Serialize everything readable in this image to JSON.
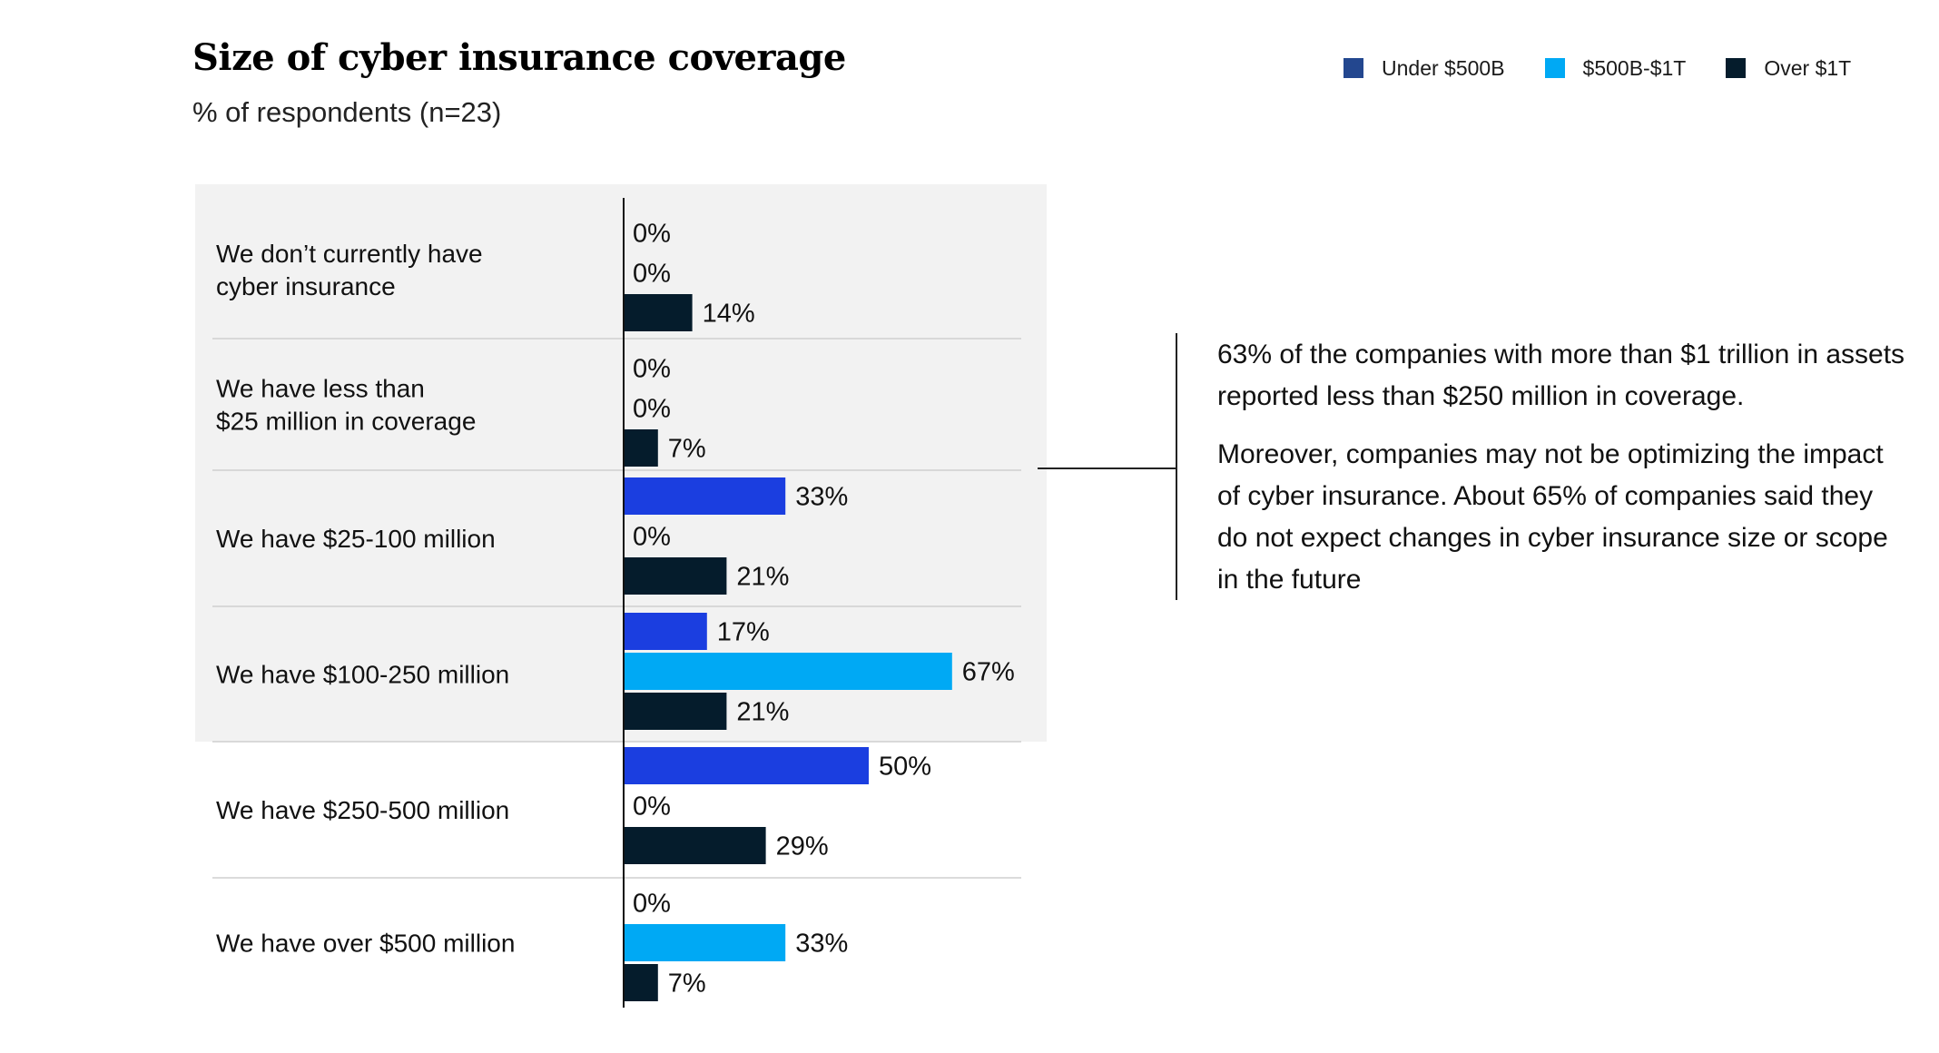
{
  "chart_data": {
    "type": "bar",
    "orientation": "horizontal",
    "title": "Size of cyber insurance coverage",
    "subtitle": "% of respondents (n=23)",
    "legend_position": "top-right",
    "categories": [
      "We don’t currently have cyber insurance",
      "We have less than $25 million in coverage",
      "We have $25-100 million",
      "We have $100-250 million",
      "We have $250-500 million",
      "We have over $500 million"
    ],
    "category_lines": [
      [
        "We don’t currently have",
        "cyber insurance"
      ],
      [
        "We have less than",
        "$25 million in coverage"
      ],
      [
        "We have $25-100 million"
      ],
      [
        "We have $100-250 million"
      ],
      [
        "We have $250-500 million"
      ],
      [
        "We have over $500 million"
      ]
    ],
    "series": [
      {
        "name": "Under $500B",
        "color": "#1b3ee0",
        "legend_color": "#23478f",
        "values": [
          0,
          0,
          33,
          17,
          50,
          0
        ]
      },
      {
        "name": "$500B-$1T",
        "color": "#00a9f4",
        "legend_color": "#00a9f4",
        "values": [
          0,
          0,
          0,
          67,
          0,
          33
        ]
      },
      {
        "name": "Over $1T",
        "color": "#051c2c",
        "legend_color": "#051c2c",
        "values": [
          14,
          7,
          21,
          21,
          29,
          7
        ]
      }
    ],
    "value_suffix": "%",
    "xlim": [
      0,
      100
    ],
    "highlighted_categories": [
      0,
      1,
      2,
      3
    ],
    "highlight_color": "#f2f2f2"
  },
  "note": {
    "paragraphs": [
      "63% of the companies with more than $1 trillion in assets reported less than $250 million in coverage.",
      "Moreover, companies may not be optimizing the impact of cyber insurance.  About 65% of companies said they do not expect changes in cyber insurance size or scope in the future"
    ]
  }
}
